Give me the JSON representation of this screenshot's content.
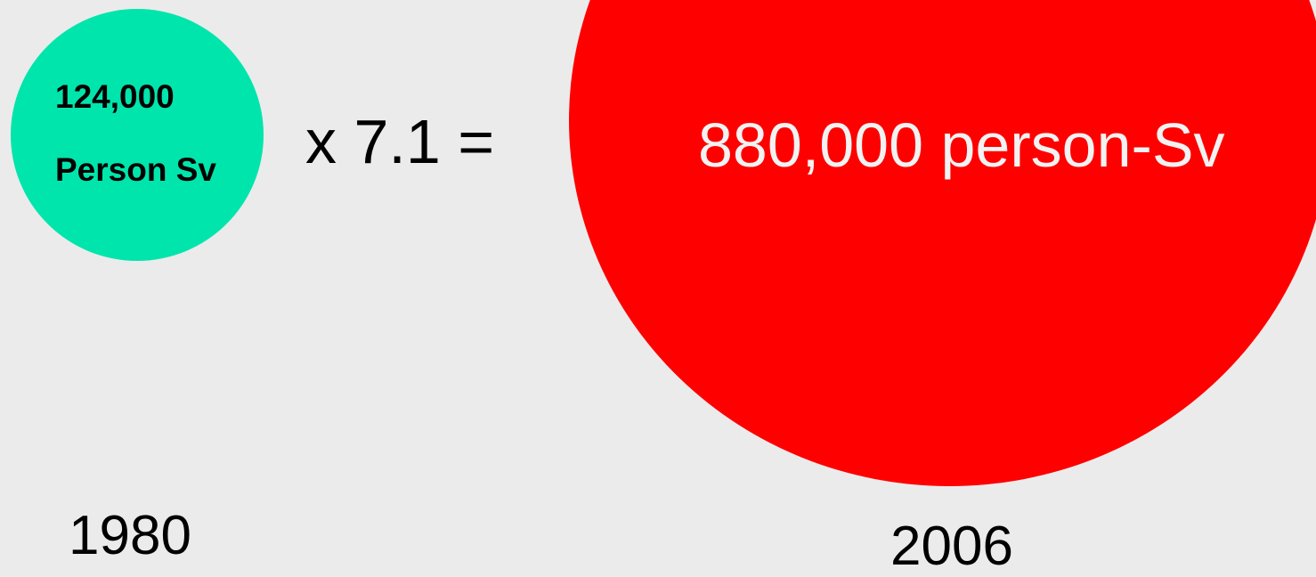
{
  "left": {
    "value": "124,000",
    "unit": "Person Sv",
    "year": "1980",
    "color": "#00e5ac"
  },
  "multiplier": "x 7.1 =",
  "right": {
    "label": "880,000 person-Sv",
    "year": "2006",
    "color": "#ff0000"
  },
  "background": "#ebebeb"
}
